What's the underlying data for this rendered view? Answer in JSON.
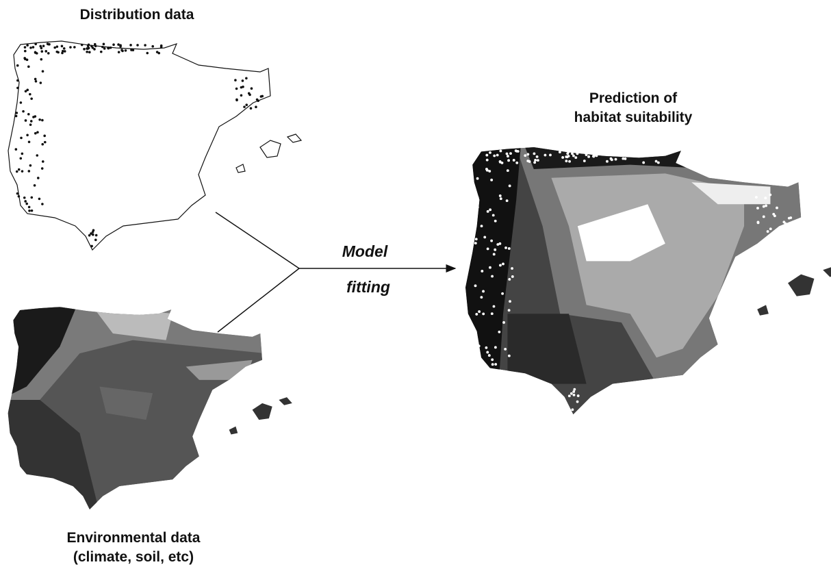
{
  "distribution": {
    "title": "Distribution data"
  },
  "prediction": {
    "title": [
      "Prediction of",
      "habitat suitability"
    ]
  },
  "model": {
    "label": [
      "Model",
      "fitting"
    ]
  },
  "environmental": {
    "title": [
      "Environmental data",
      "(climate, soil, etc)"
    ]
  }
}
